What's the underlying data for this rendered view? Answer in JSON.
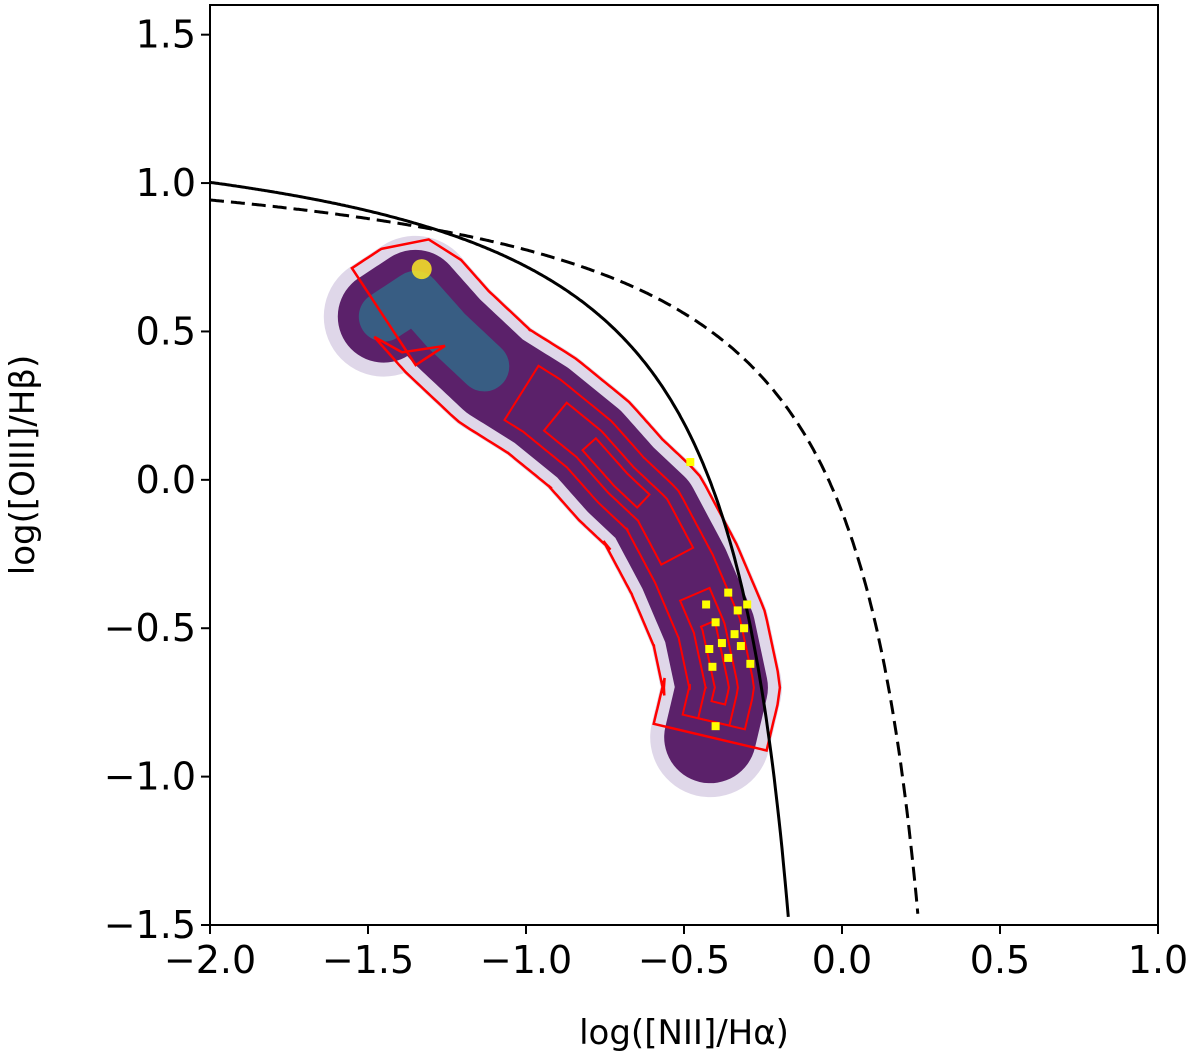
{
  "chart_data": {
    "type": "scatter",
    "title": "",
    "xlabel": "log([NII]/Hα)",
    "ylabel": "log([OIII]/Hβ)",
    "xlim": [
      -2.0,
      1.0
    ],
    "ylim": [
      -1.5,
      1.6
    ],
    "x_ticks": [
      -2.0,
      -1.5,
      -1.0,
      -0.5,
      0.0,
      0.5,
      1.0
    ],
    "x_tick_labels": [
      "−2.0",
      "−1.5",
      "−1.0",
      "−0.5",
      "0.0",
      "0.5",
      "1.0"
    ],
    "y_ticks": [
      -1.5,
      -1.0,
      -0.5,
      0.0,
      0.5,
      1.0,
      1.5
    ],
    "y_tick_labels": [
      "−1.5",
      "−1.0",
      "−0.5",
      "0.0",
      "0.5",
      "1.0",
      "1.5"
    ],
    "grid": false,
    "colors": {
      "solid_line": "#000000",
      "dashed_line": "#000000",
      "contours": "#ff0000",
      "highlight_points": "#ffff00",
      "density_low": "#440154",
      "density_mid": "#2a788e",
      "density_high": "#fde725"
    },
    "curves": [
      {
        "style": "solid",
        "formula": "y = 0.61/(x - 0.05) + 1.3",
        "x_range": [
          -2.0,
          -0.17
        ]
      },
      {
        "style": "dashed",
        "formula": "y = 0.61/(x - 0.47) + 1.19",
        "x_range": [
          -2.0,
          0.24
        ]
      }
    ],
    "density_cloud": {
      "ridge": [
        {
          "x": -1.45,
          "y": 0.55
        },
        {
          "x": -1.35,
          "y": 0.62
        },
        {
          "x": -1.25,
          "y": 0.5
        },
        {
          "x": -1.1,
          "y": 0.35
        },
        {
          "x": -0.95,
          "y": 0.25
        },
        {
          "x": -0.8,
          "y": 0.12
        },
        {
          "x": -0.7,
          "y": 0.0
        },
        {
          "x": -0.6,
          "y": -0.1
        },
        {
          "x": -0.5,
          "y": -0.3
        },
        {
          "x": -0.42,
          "y": -0.5
        },
        {
          "x": -0.38,
          "y": -0.7
        },
        {
          "x": -0.42,
          "y": -0.88
        }
      ]
    },
    "highlight_points": [
      {
        "x": -0.48,
        "y": 0.06
      },
      {
        "x": -0.43,
        "y": -0.42
      },
      {
        "x": -0.4,
        "y": -0.48
      },
      {
        "x": -0.36,
        "y": -0.38
      },
      {
        "x": -0.33,
        "y": -0.44
      },
      {
        "x": -0.31,
        "y": -0.5
      },
      {
        "x": -0.34,
        "y": -0.52
      },
      {
        "x": -0.3,
        "y": -0.42
      },
      {
        "x": -0.38,
        "y": -0.55
      },
      {
        "x": -0.42,
        "y": -0.57
      },
      {
        "x": -0.36,
        "y": -0.6
      },
      {
        "x": -0.41,
        "y": -0.63
      },
      {
        "x": -0.29,
        "y": -0.62
      },
      {
        "x": -0.4,
        "y": -0.83
      },
      {
        "x": -0.32,
        "y": -0.56
      }
    ]
  }
}
